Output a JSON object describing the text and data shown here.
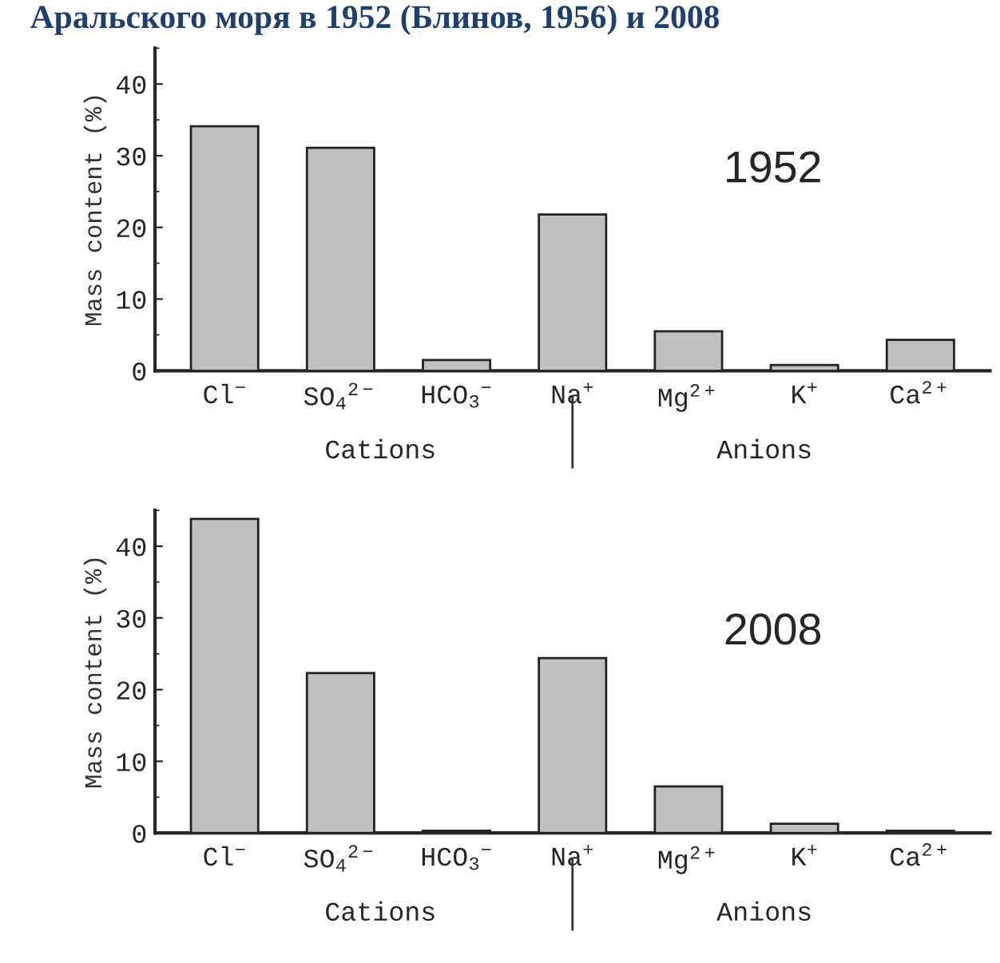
{
  "chart_data": [
    {
      "type": "bar",
      "title": "Аральского моря в 1952 (Блинов, 1956) и 2008",
      "ylabel": "Mass content (%)",
      "categories": [
        "Cl$^{−}$",
        "SO$_{4}$$^{2−}$",
        "HCO$_{3}$$^{−}$",
        "Na$^{+}$",
        "Mg$^{2+}$",
        "K$^{+}$",
        "Ca$^{2+}$"
      ],
      "values": [
        34.1,
        31.1,
        1.5,
        21.8,
        5.5,
        0.8,
        4.3
      ],
      "color": "#c0c0c0",
      "ylim": [
        0,
        45
      ],
      "yticks": [
        0,
        10,
        20,
        30,
        40
      ],
      "grid": false,
      "annotations": [
        "1952",
        "Cations",
        "Anions"
      ]
    },
    {
      "type": "bar",
      "ylabel": "Mass content (%)",
      "categories": [
        "Cl$^{−}$",
        "SO$_{4}$$^{2−}$",
        "HCO$_{3}$$^{−}$",
        "Na$^{+}$",
        "Mg$^{2+}$",
        "K$^{+}$",
        "Ca$^{2+}$"
      ],
      "values": [
        43.8,
        22.3,
        0.3,
        24.4,
        6.5,
        1.3,
        0.3
      ],
      "color": "#c0c0c0",
      "ylim": [
        0,
        45
      ],
      "yticks": [
        0,
        10,
        20,
        30,
        40
      ],
      "grid": false,
      "annotations": [
        "2008",
        "Cations",
        "Anions"
      ]
    }
  ]
}
